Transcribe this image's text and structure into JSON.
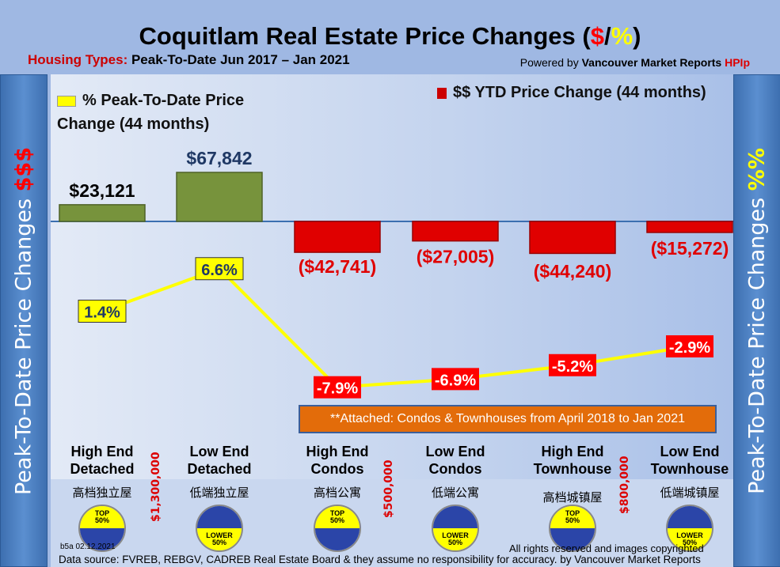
{
  "header": {
    "title_main": "Coquitlam Real Estate Price Changes (",
    "title_dollar": "$",
    "title_slash": "/",
    "title_pct": "%",
    "title_close": ")",
    "subtitle_label": "Housing Types:",
    "subtitle_text": " Peak-To-Date Jun 2017 – Jan 2021",
    "powered_prefix": "Powered by ",
    "powered_brand": "Vancouver Market Reports ",
    "powered_hpi": "HPIp"
  },
  "side": {
    "left_text": "Peak-To-Date Price Changes ",
    "left_accent": "$$$",
    "right_text": "Peak-To-Date  Price  Changes ",
    "right_accent": "%%"
  },
  "note": "**Attached: Condos & Townhouses from April 2018 to Jan 2021",
  "price_tiers": [
    "$1,300,000",
    "$500,000",
    "$800,000"
  ],
  "categories_zh": [
    "高档独立屋",
    "低端独立屋",
    "高档公寓",
    "低端公寓",
    "高档城镇屋",
    "低端城镇屋"
  ],
  "badges": [
    {
      "label": "TOP 50%",
      "type": "top"
    },
    {
      "label": "LOWER 50%",
      "type": "lower"
    },
    {
      "label": "TOP 50%",
      "type": "top"
    },
    {
      "label": "LOWER 50%",
      "type": "lower"
    },
    {
      "label": "TOP 50%",
      "type": "top"
    },
    {
      "label": "LOWER 50%",
      "type": "lower"
    }
  ],
  "footer": {
    "version": "b5a 02.12.2021",
    "rights": "All rights reserved and  images copyrighted",
    "source": "Data source: FVREB, REBGV, CADREB Real Estate Board & they assume no responsibility for accuracy. by Vancouver Market Reports"
  },
  "colors": {
    "pos_bar": "#77933c",
    "neg_bar": "#e00000",
    "line": "#ffff00",
    "side": "#4f81bd"
  },
  "chart_data": {
    "type": "bar+line",
    "title": "Coquitlam Real Estate Price Changes ($/%)",
    "categories": [
      "High End Detached",
      "Low End Detached",
      "High End Condos",
      "Low End Condos",
      "High End Townhouse",
      "Low End Townhouse"
    ],
    "series": [
      {
        "name": "$$ YTD Price Change (44 months)",
        "type": "bar",
        "values": [
          23121,
          67842,
          -42741,
          -27005,
          -44240,
          -15272
        ],
        "labels": [
          "$23,121",
          "$67,842",
          "($42,741)",
          "($27,005)",
          "($44,240)",
          "($15,272)"
        ]
      },
      {
        "name": "% Peak-To-Date Price Change (44 months)",
        "type": "line",
        "values": [
          1.4,
          6.6,
          -7.9,
          -6.9,
          -5.2,
          -2.9
        ],
        "labels": [
          "1.4%",
          "6.6%",
          "-7.9%",
          "-6.9%",
          "-5.2%",
          "-2.9%"
        ]
      }
    ],
    "legend": [
      "% Peak-To-Date Price Change (44 months)",
      "$$ YTD Price Change (44 months)"
    ]
  }
}
